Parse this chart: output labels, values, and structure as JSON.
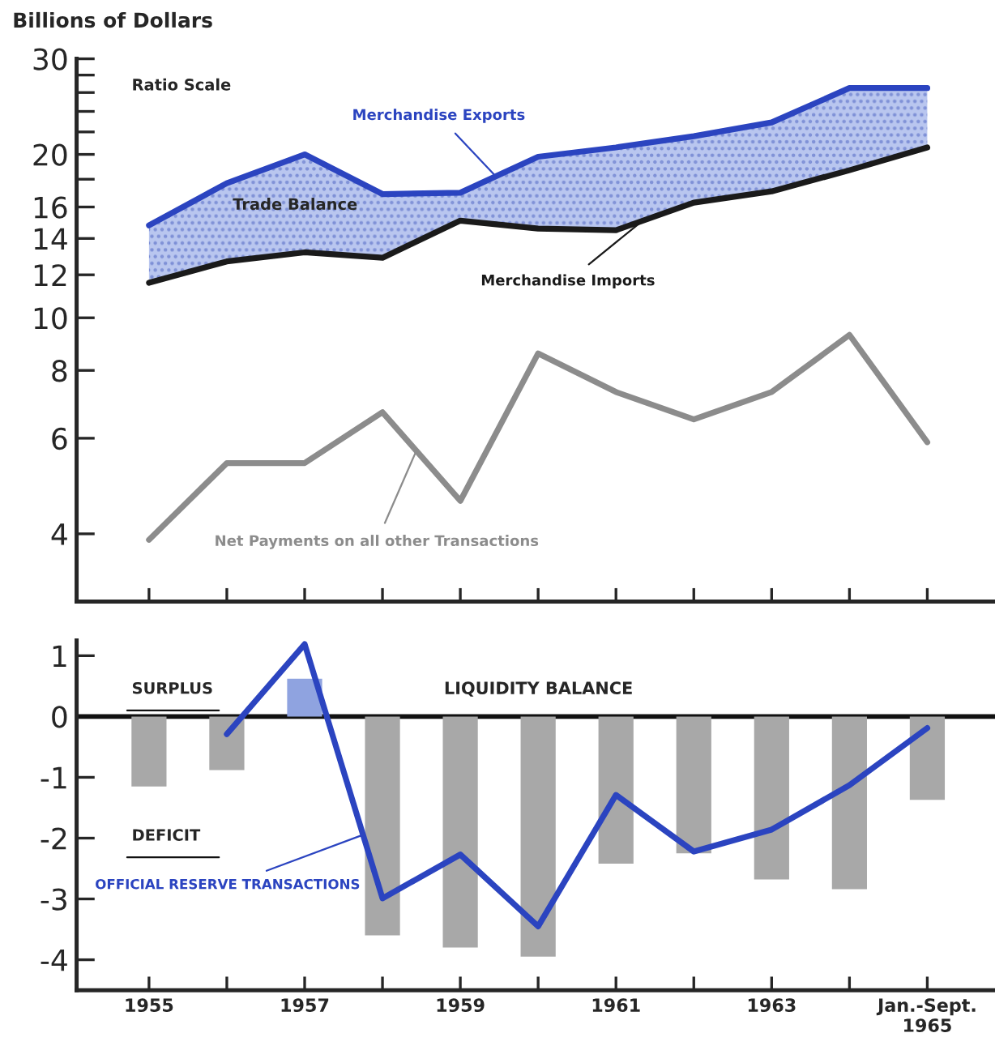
{
  "chart_data": [
    {
      "type": "line",
      "ylabel": "Billions of Dollars",
      "log": true,
      "tick_labels": "y",
      "grid": false,
      "legend": false,
      "marker": "none",
      "line_style": "solid",
      "categories": [
        null,
        null,
        null,
        null,
        null,
        null,
        null,
        null,
        null,
        null,
        null
      ],
      "ylim": [
        3,
        30
      ],
      "yticks": [
        4,
        6,
        8,
        10,
        12,
        14,
        16,
        {
          "value": 18,
          "label": null
        },
        20,
        {
          "value": 22,
          "label": null
        },
        {
          "value": 24,
          "label": null
        },
        {
          "value": 26,
          "label": null
        },
        {
          "value": 28,
          "label": null
        },
        30
      ],
      "series": [
        {
          "name": "Merchandise Exports",
          "color": "#2b44c0",
          "values": [
            14.8,
            17.7,
            20,
            16.9,
            17.0,
            19.8,
            20.6,
            21.6,
            22.9,
            26.5,
            26.5
          ],
          "lower": [
            11.6,
            12.7,
            13.2,
            12.9,
            15.1,
            14.6,
            14.5,
            16.3,
            17.1,
            18.7,
            20.6
          ],
          "upper": [
            14.8,
            17.7,
            20,
            16.9,
            17.0,
            19.8,
            20.6,
            21.6,
            22.9,
            26.5,
            26.5
          ]
        },
        {
          "name": "Merchandise Imports",
          "color": "#1a1a1a",
          "values": [
            11.6,
            12.7,
            13.2,
            12.9,
            15.1,
            14.6,
            14.5,
            16.3,
            17.1,
            18.7,
            20.6
          ]
        },
        {
          "name": "Net Payments on all other Transactions",
          "color": "#8c8c8c",
          "values": [
            3.9,
            5.4,
            5.4,
            6.7,
            4.6,
            8.6,
            7.3,
            6.5,
            7.3,
            9.3,
            5.9
          ]
        }
      ],
      "annotations": [
        "Ratio Scale",
        "Trade Balance"
      ]
    },
    {
      "type": "bar",
      "grid": false,
      "legend": false,
      "categories": [
        "1955",
        null,
        "1957",
        null,
        "1959",
        null,
        "1961",
        null,
        "1963",
        null,
        "Jan.-Sept.\n1965"
      ],
      "ylim": [
        -4.5,
        1.25
      ],
      "yticks": [
        -4,
        -3,
        -2,
        -1,
        0,
        1
      ],
      "ref_lines": [
        {
          "axis": "y",
          "value": 0
        }
      ],
      "series": [
        {
          "name": "LIQUIDITY BALANCE",
          "values": [
            -1.15,
            -0.88,
            0.62,
            -3.6,
            -3.8,
            -3.95,
            -2.42,
            -2.25,
            -2.68,
            -2.84,
            -1.37
          ],
          "colors": [
            "#a8a8a8",
            "#a8a8a8",
            "#8fa3e0",
            "#a8a8a8",
            "#a8a8a8",
            "#a8a8a8",
            "#a8a8a8",
            "#a8a8a8",
            "#a8a8a8",
            "#a8a8a8",
            "#a8a8a8"
          ]
        },
        {
          "name": "OFFICIAL RESERVE TRANSACTIONS",
          "type": "line",
          "color": "#2b44c0",
          "values": [
            null,
            -0.29,
            1.19,
            -2.99,
            -2.27,
            -3.45,
            -1.29,
            -2.22,
            -1.86,
            -1.13,
            -0.19
          ]
        }
      ],
      "annotations": [
        "SURPLUS",
        "DEFICIT"
      ]
    }
  ]
}
